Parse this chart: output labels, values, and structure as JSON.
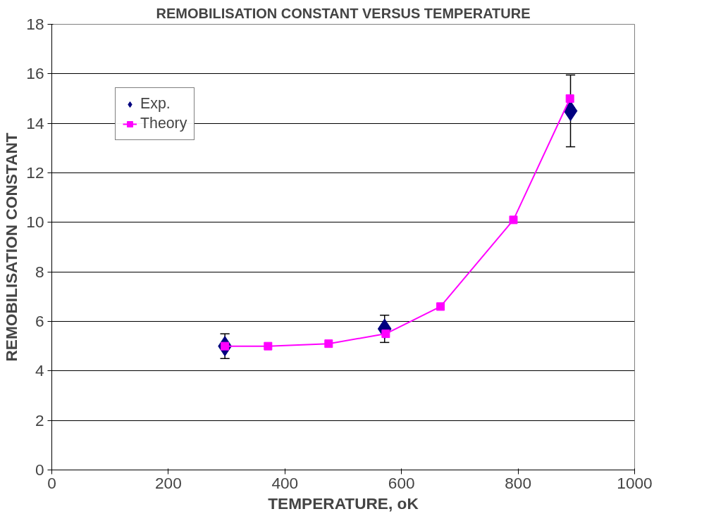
{
  "chart_data": {
    "type": "scatter",
    "title": "REMOBILISATION CONSTANT VERSUS TEMPERATURE",
    "xlabel": "TEMPERATURE, oK",
    "ylabel": "REMOBILISATION CONSTANT",
    "xlim": [
      0,
      1000
    ],
    "xticks": [
      0,
      200,
      400,
      600,
      800,
      1000
    ],
    "ylim": [
      0,
      18
    ],
    "yticks": [
      0,
      2,
      4,
      6,
      8,
      10,
      12,
      14,
      16,
      18
    ],
    "grid": "y",
    "legend": "top left",
    "series": [
      {
        "name": "Exp.",
        "marker": "diamond",
        "color": "#000080",
        "x": [
          297,
          571,
          890
        ],
        "values": [
          5.0,
          5.7,
          14.5
        ],
        "errors": [
          0.5,
          0.55,
          1.45
        ]
      },
      {
        "name": "Theory",
        "type": "line",
        "marker": "square",
        "color": "#ff00ff",
        "x": [
          297,
          371,
          475,
          573,
          667,
          792,
          889
        ],
        "values": [
          5.0,
          5.0,
          5.1,
          5.5,
          6.6,
          10.1,
          15.0
        ]
      }
    ]
  }
}
